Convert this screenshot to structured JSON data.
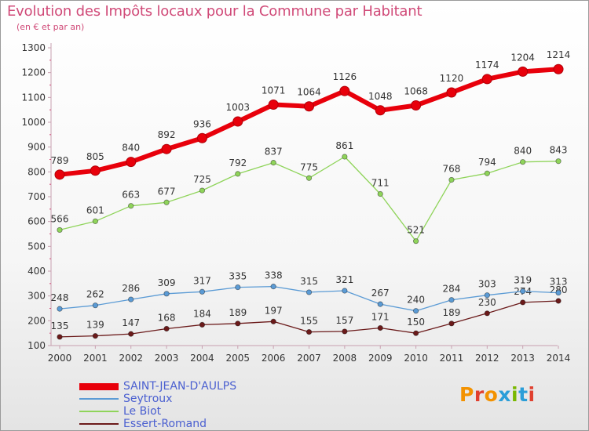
{
  "header": {
    "title": "Evolution des Impôts locaux pour la Commune par Habitant",
    "subtitle": "(en € et par an)"
  },
  "logo": {
    "text": "Proxiti",
    "colors": [
      "#f39200",
      "#e0402f",
      "#f39200",
      "#2b9ed8",
      "#7ab800",
      "#2b9ed8",
      "#e0402f"
    ]
  },
  "chart_data": {
    "type": "line",
    "title": "Evolution des Impôts locaux pour la Commune par Habitant",
    "subtitle": "(en € et par an)",
    "x": [
      "2000",
      "2001",
      "2002",
      "2003",
      "2004",
      "2005",
      "2006",
      "2007",
      "2008",
      "2009",
      "2010",
      "2011",
      "2012",
      "2013",
      "2014"
    ],
    "ylim": [
      100,
      1300
    ],
    "yticks": [
      100,
      200,
      300,
      400,
      500,
      600,
      700,
      800,
      900,
      1000,
      1100,
      1200,
      1300
    ],
    "grid": false,
    "legend_position": "bottom-left",
    "series": [
      {
        "name": "SAINT-JEAN-D'AULPS",
        "color": "#e8000b",
        "values": [
          789,
          805,
          840,
          892,
          936,
          1003,
          1071,
          1064,
          1126,
          1048,
          1068,
          1120,
          1174,
          1204,
          1214
        ]
      },
      {
        "name": "Seytroux",
        "color": "#5b9bd5",
        "values": [
          248,
          262,
          286,
          309,
          317,
          335,
          338,
          315,
          321,
          267,
          240,
          284,
          303,
          319,
          313
        ]
      },
      {
        "name": "Le Biot",
        "color": "#8fd45a",
        "values": [
          566,
          601,
          663,
          677,
          725,
          792,
          837,
          775,
          861,
          711,
          521,
          768,
          794,
          840,
          843
        ]
      },
      {
        "name": "Essert-Romand",
        "color": "#6b1a1a",
        "values": [
          135,
          139,
          147,
          168,
          184,
          189,
          197,
          155,
          157,
          171,
          150,
          189,
          230,
          274,
          280
        ]
      }
    ]
  }
}
